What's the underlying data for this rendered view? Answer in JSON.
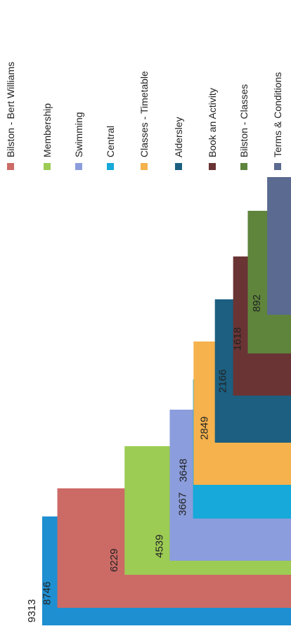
{
  "chart_data": {
    "type": "bar",
    "orientation": "horizontal",
    "rotated_page": true,
    "categories": [
      "",
      "Bilston - Bert Williams",
      "Membership",
      "Swimming",
      "Central",
      "Classes - Timetable",
      "Aldersley",
      "Book an Activity",
      "Bilston - Classes",
      "Terms & Conditions"
    ],
    "values": [
      9313,
      8746,
      6229,
      4539,
      3667,
      3648,
      2849,
      2166,
      1618,
      892
    ],
    "value_labels": [
      "9313",
      "8746",
      "6229",
      "4539",
      "3667",
      "3648",
      "2849",
      "2166",
      "1618",
      "892"
    ],
    "colors": [
      "#1e8fd1",
      "#cc6a66",
      "#9ccc54",
      "#8b9ddc",
      "#16a9d9",
      "#f5b24d",
      "#1c5f80",
      "#6a3434",
      "#5f853d",
      "#5a6a90"
    ],
    "legend_position": "right",
    "grid": false,
    "xlim": [
      0,
      9313
    ]
  }
}
